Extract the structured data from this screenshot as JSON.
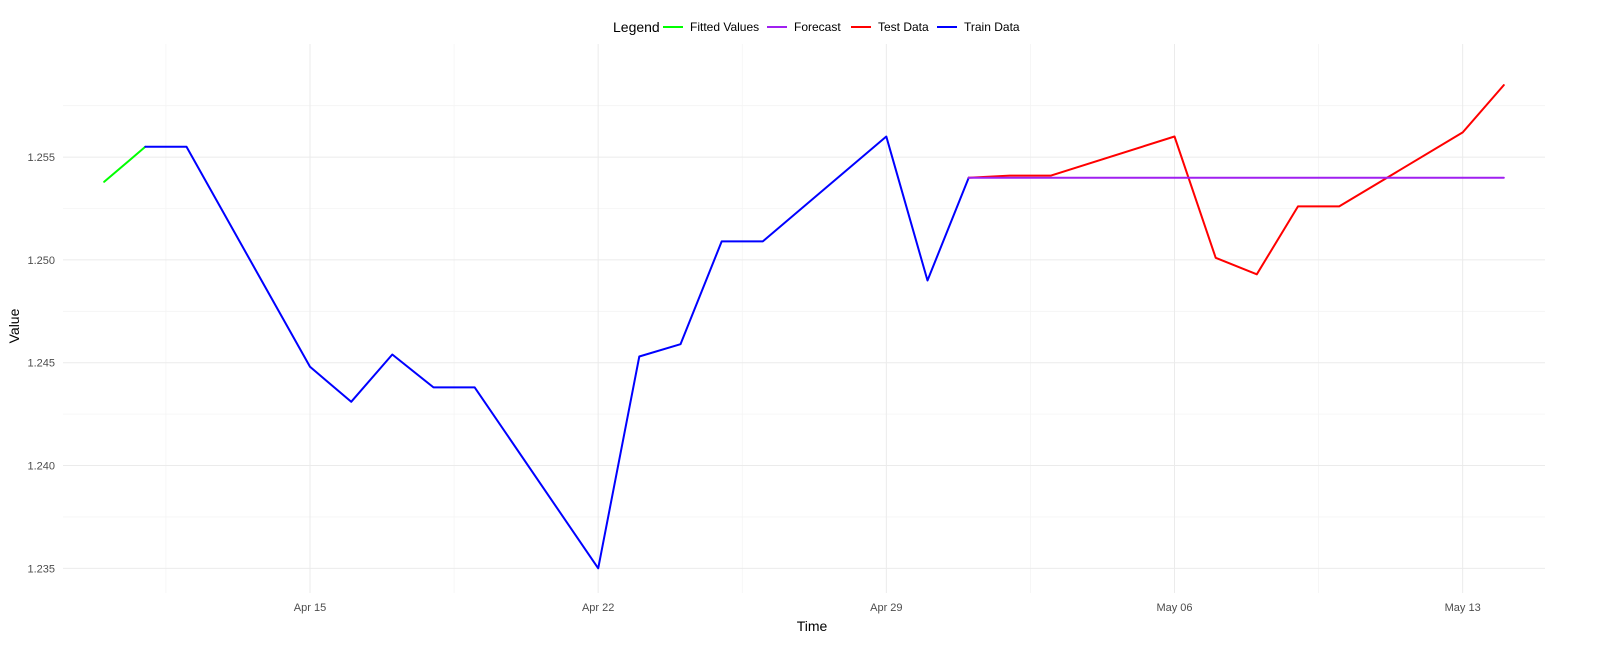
{
  "chart_data": {
    "type": "line",
    "title": "",
    "xlabel": "Time",
    "ylabel": "Value",
    "legend": {
      "title": "Legend",
      "placement": "top",
      "entries": [
        "Fitted Values",
        "Forecast",
        "Test Data",
        "Train Data"
      ]
    },
    "x_ticks": [
      "Apr 15",
      "Apr 22",
      "Apr 29",
      "May 06",
      "May 13"
    ],
    "x_tick_dates": [
      "2024-04-15",
      "2024-04-22",
      "2024-04-29",
      "2024-05-06",
      "2024-05-13"
    ],
    "y_ticks": [
      "1.235",
      "1.240",
      "1.245",
      "1.250",
      "1.255"
    ],
    "ylim": [
      1.2338,
      1.2605
    ],
    "xlim": [
      "2024-04-09",
      "2024-05-15"
    ],
    "grid": true,
    "series": [
      {
        "name": "Fitted Values",
        "color": "#00ff00",
        "points": [
          [
            "2024-04-10",
            1.2538
          ],
          [
            "2024-04-11",
            1.2555
          ]
        ]
      },
      {
        "name": "Train Data",
        "color": "#0000ff",
        "points": [
          [
            "2024-04-11",
            1.2555
          ],
          [
            "2024-04-12",
            1.2555
          ],
          [
            "2024-04-15",
            1.2448
          ],
          [
            "2024-04-16",
            1.2431
          ],
          [
            "2024-04-17",
            1.2454
          ],
          [
            "2024-04-18",
            1.2438
          ],
          [
            "2024-04-19",
            1.2438
          ],
          [
            "2024-04-22",
            1.235
          ],
          [
            "2024-04-23",
            1.2453
          ],
          [
            "2024-04-24",
            1.2459
          ],
          [
            "2024-04-25",
            1.2509
          ],
          [
            "2024-04-26",
            1.2509
          ],
          [
            "2024-04-29",
            1.256
          ],
          [
            "2024-04-30",
            1.249
          ],
          [
            "2024-05-01",
            1.254
          ]
        ]
      },
      {
        "name": "Test Data",
        "color": "#ff0000",
        "points": [
          [
            "2024-05-01",
            1.254
          ],
          [
            "2024-05-02",
            1.2541
          ],
          [
            "2024-05-03",
            1.2541
          ],
          [
            "2024-05-06",
            1.256
          ],
          [
            "2024-05-07",
            1.2501
          ],
          [
            "2024-05-08",
            1.2493
          ],
          [
            "2024-05-09",
            1.2526
          ],
          [
            "2024-05-10",
            1.2526
          ],
          [
            "2024-05-13",
            1.2562
          ],
          [
            "2024-05-14",
            1.2585
          ]
        ]
      },
      {
        "name": "Forecast",
        "color": "#a020f0",
        "points": [
          [
            "2024-05-01",
            1.254
          ],
          [
            "2024-05-14",
            1.254
          ]
        ]
      }
    ]
  }
}
